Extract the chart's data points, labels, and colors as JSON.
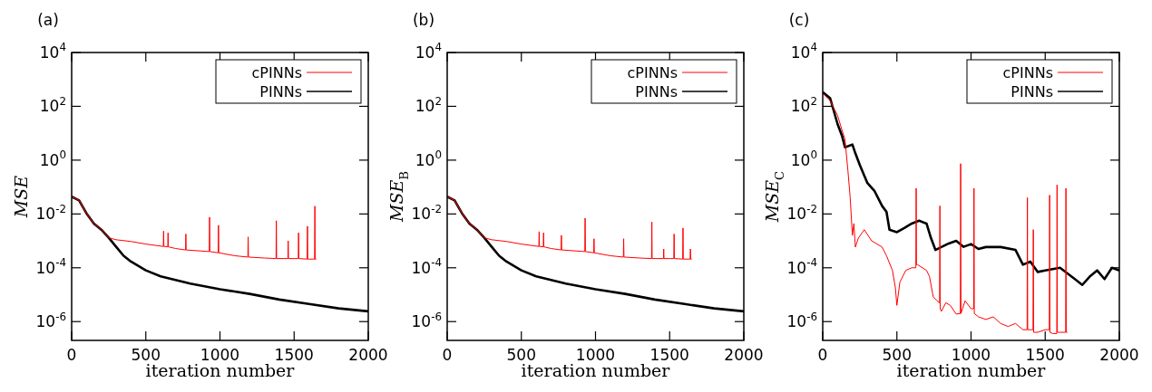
{
  "chart_data": [
    {
      "type": "line",
      "title": "(a)",
      "xlabel": "iteration number",
      "ylabel": "MSE",
      "log": "y",
      "xlim": [
        0,
        2000
      ],
      "xticks": [
        0,
        500,
        1000,
        1500,
        2000
      ],
      "ylim": [
        2e-07,
        10000
      ],
      "yticks": [
        {
          "value": 1e-06,
          "label": "10$^{-6}$"
        },
        {
          "value": 0.0001,
          "label": "10$^{-4}$"
        },
        {
          "value": 0.01,
          "label": "10$^{-2}$"
        },
        {
          "value": 1,
          "label": "10$^{0}$"
        },
        {
          "value": 100,
          "label": "10$^{2}$"
        },
        {
          "value": 10000,
          "label": "10$^{4}$"
        }
      ],
      "legend": "top right",
      "grid": false,
      "series": [
        {
          "name": "cPINNs",
          "color": "#ff0000",
          "x": [
            0,
            50,
            100,
            150,
            200,
            250,
            300,
            400,
            500,
            618,
            620,
            622,
            648,
            650,
            652,
            700,
            768,
            770,
            772,
            900,
            928,
            930,
            932,
            988,
            990,
            992,
            1100,
            1188,
            1190,
            1192,
            1300,
            1378,
            1380,
            1382,
            1458,
            1460,
            1462,
            1500,
            1528,
            1530,
            1532,
            1588,
            1590,
            1592,
            1638,
            1640,
            1642,
            1650
          ],
          "values": [
            0.044,
            0.032,
            0.0105,
            0.0044,
            0.0026,
            0.0013,
            0.0011,
            0.00095,
            0.00076,
            0.00062,
            0.0023,
            0.00062,
            0.0006,
            0.002,
            0.0006,
            0.00052,
            0.00046,
            0.0018,
            0.00046,
            0.00041,
            0.0004,
            0.0076,
            0.0004,
            0.00036,
            0.0038,
            0.00036,
            0.00028,
            0.00025,
            0.0014,
            0.00025,
            0.00023,
            0.00022,
            0.0056,
            0.00022,
            0.00022,
            0.001,
            0.00022,
            0.00022,
            0.00022,
            0.002,
            0.00022,
            0.00021,
            0.0035,
            0.00021,
            0.00021,
            0.0195,
            0.00021,
            0.00021
          ]
        },
        {
          "name": "PINNs",
          "color": "#000000",
          "x": [
            0,
            50,
            100,
            150,
            200,
            250,
            300,
            350,
            400,
            500,
            600,
            800,
            1000,
            1200,
            1400,
            1600,
            1800,
            2000
          ],
          "values": [
            0.044,
            0.032,
            0.0105,
            0.0044,
            0.0026,
            0.0013,
            0.0006,
            0.00028,
            0.00017,
            8e-05,
            4.8e-05,
            2.6e-05,
            1.6e-05,
            1.07e-05,
            6.6e-06,
            4.5e-06,
            3.1e-06,
            2.4e-06
          ]
        }
      ]
    },
    {
      "type": "line",
      "title": "(b)",
      "xlabel": "iteration number",
      "ylabel": "MSE$_{B}$",
      "log": "y",
      "xlim": [
        0,
        2000
      ],
      "xticks": [
        0,
        500,
        1000,
        1500,
        2000
      ],
      "ylim": [
        2e-07,
        10000
      ],
      "yticks": [
        {
          "value": 1e-06,
          "label": "10$^{-6}$"
        },
        {
          "value": 0.0001,
          "label": "10$^{-4}$"
        },
        {
          "value": 0.01,
          "label": "10$^{-2}$"
        },
        {
          "value": 1,
          "label": "10$^{0}$"
        },
        {
          "value": 100,
          "label": "10$^{2}$"
        },
        {
          "value": 10000,
          "label": "10$^{4}$"
        }
      ],
      "legend": "top right",
      "grid": false,
      "series": [
        {
          "name": "cPINNs",
          "color": "#ff0000",
          "x": [
            0,
            50,
            100,
            150,
            200,
            250,
            300,
            400,
            500,
            618,
            620,
            622,
            648,
            650,
            652,
            700,
            768,
            770,
            772,
            900,
            928,
            930,
            932,
            988,
            990,
            992,
            1100,
            1188,
            1190,
            1192,
            1300,
            1378,
            1380,
            1382,
            1458,
            1460,
            1462,
            1500,
            1528,
            1530,
            1532,
            1588,
            1590,
            1592,
            1638,
            1640,
            1642,
            1650
          ],
          "values": [
            0.044,
            0.032,
            0.0105,
            0.0044,
            0.0026,
            0.0013,
            0.0011,
            0.00095,
            0.00076,
            0.00062,
            0.0022,
            0.00062,
            0.0006,
            0.002,
            0.0006,
            0.00052,
            0.00046,
            0.0016,
            0.00046,
            0.00041,
            0.0004,
            0.007,
            0.0004,
            0.00036,
            0.0012,
            0.00036,
            0.00028,
            0.00025,
            0.0012,
            0.00025,
            0.00023,
            0.00022,
            0.005,
            0.00022,
            0.00022,
            0.0005,
            0.00022,
            0.00022,
            0.00022,
            0.0018,
            0.00022,
            0.00021,
            0.003,
            0.00021,
            0.00021,
            0.0005,
            0.00021,
            0.00021
          ]
        },
        {
          "name": "PINNs",
          "color": "#000000",
          "x": [
            0,
            50,
            100,
            150,
            200,
            250,
            300,
            350,
            400,
            500,
            600,
            800,
            1000,
            1200,
            1400,
            1600,
            1800,
            2000
          ],
          "values": [
            0.044,
            0.032,
            0.0105,
            0.0044,
            0.0026,
            0.0013,
            0.0006,
            0.00028,
            0.00017,
            8e-05,
            4.8e-05,
            2.6e-05,
            1.6e-05,
            1.07e-05,
            6.6e-06,
            4.5e-06,
            3.1e-06,
            2.4e-06
          ]
        }
      ]
    },
    {
      "type": "line",
      "title": "(c)",
      "xlabel": "iteration number",
      "ylabel": "MSE$_{C}$",
      "log": "y",
      "xlim": [
        0,
        2000
      ],
      "xticks": [
        0,
        500,
        1000,
        1500,
        2000
      ],
      "ylim": [
        2e-07,
        10000
      ],
      "yticks": [
        {
          "value": 1e-06,
          "label": "10$^{-6}$"
        },
        {
          "value": 0.0001,
          "label": "10$^{-4}$"
        },
        {
          "value": 0.01,
          "label": "10$^{-2}$"
        },
        {
          "value": 1,
          "label": "10$^{0}$"
        },
        {
          "value": 100,
          "label": "10$^{2}$"
        },
        {
          "value": 10000,
          "label": "10$^{4}$"
        }
      ],
      "legend": "top right",
      "grid": false,
      "series": [
        {
          "name": "cPINNs",
          "color": "#ff0000",
          "x": [
            0,
            50,
            100,
            130,
            150,
            170,
            185,
            200,
            210,
            220,
            240,
            280,
            330,
            400,
            430,
            470,
            490,
            500,
            520,
            560,
            600,
            628,
            630,
            632,
            640,
            700,
            720,
            745,
            770,
            788,
            790,
            792,
            800,
            830,
            860,
            900,
            928,
            930,
            932,
            960,
            1000,
            1018,
            1020,
            1022,
            1050,
            1100,
            1150,
            1200,
            1250,
            1300,
            1350,
            1378,
            1380,
            1382,
            1400,
            1418,
            1420,
            1422,
            1450,
            1500,
            1528,
            1530,
            1532,
            1550,
            1578,
            1580,
            1582,
            1600,
            1638,
            1640,
            1642,
            1650
          ],
          "values": [
            300,
            160,
            46,
            13,
            6,
            0.4,
            0.042,
            0.0016,
            0.0044,
            0.00059,
            0.00126,
            0.0026,
            0.001,
            0.00059,
            0.00028,
            8e-05,
            1.8e-05,
            4e-06,
            2.9e-05,
            8e-05,
            0.0001,
            0.0001,
            0.09,
            0.00013,
            0.00013,
            8e-05,
            4.7e-05,
            8.3e-06,
            6e-06,
            5e-06,
            0.02,
            3e-06,
            2.4e-06,
            5e-06,
            4e-06,
            1.9e-06,
            2e-06,
            0.74,
            2e-06,
            5.9e-06,
            3e-06,
            3e-06,
            0.09,
            2e-06,
            1.5e-06,
            1.2e-06,
            1.5e-06,
            8.5e-07,
            6.6e-07,
            8.5e-07,
            5e-07,
            5e-07,
            0.04,
            5e-07,
            5e-07,
            5e-07,
            0.0026,
            4e-07,
            4e-07,
            5e-07,
            5e-07,
            0.05,
            4e-07,
            3.6e-07,
            3.6e-07,
            0.12,
            4e-07,
            4e-07,
            4e-07,
            0.09,
            4e-07,
            4e-07
          ]
        },
        {
          "name": "PINNs",
          "color": "#000000",
          "x": [
            0,
            50,
            100,
            130,
            150,
            200,
            220,
            250,
            300,
            350,
            400,
            430,
            450,
            500,
            550,
            600,
            650,
            700,
            730,
            760,
            800,
            850,
            900,
            950,
            1000,
            1050,
            1100,
            1200,
            1300,
            1350,
            1400,
            1450,
            1500,
            1600,
            1700,
            1750,
            1800,
            1850,
            1900,
            1950,
            2000
          ],
          "values": [
            340,
            200,
            22,
            8,
            3,
            3.8,
            1.8,
            0.66,
            0.145,
            0.07,
            0.02,
            0.012,
            0.0026,
            0.0021,
            0.003,
            0.0044,
            0.0056,
            0.0044,
            0.00126,
            0.00046,
            0.00059,
            0.0008,
            0.001,
            0.0006,
            0.00076,
            0.0005,
            0.00059,
            0.00059,
            0.00046,
            0.00013,
            0.00017,
            7e-05,
            8e-05,
            0.0001,
            3.8e-05,
            2.3e-05,
            4.7e-05,
            8e-05,
            3.8e-05,
            0.0001,
            8e-05
          ]
        }
      ]
    }
  ]
}
